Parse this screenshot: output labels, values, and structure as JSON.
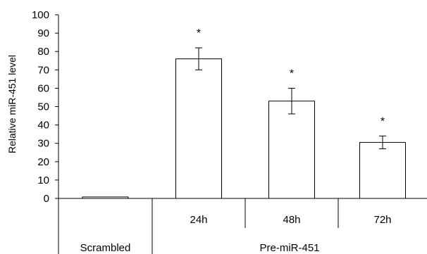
{
  "chart_data": {
    "type": "bar",
    "ylabel": "Relative miR-451 level",
    "ylim": [
      0,
      100
    ],
    "yticks": [
      0,
      10,
      20,
      30,
      40,
      50,
      60,
      70,
      80,
      90,
      100
    ],
    "categories": [
      "Scrambled",
      "24h",
      "48h",
      "72h"
    ],
    "values": [
      0.8,
      76,
      53,
      30.5
    ],
    "error": [
      0,
      6,
      7,
      3.5
    ],
    "significance": [
      "",
      "*",
      "*",
      "*"
    ],
    "groups": [
      {
        "label": "Scrambled",
        "categories": [
          "Scrambled"
        ]
      },
      {
        "label": "Pre-miR-451",
        "categories": [
          "24h",
          "48h",
          "72h"
        ]
      }
    ],
    "grid": false,
    "legend": "none",
    "colors": {
      "bar_fill": "#ffffff",
      "bar_stroke": "#000000",
      "axis": "#000000"
    }
  }
}
